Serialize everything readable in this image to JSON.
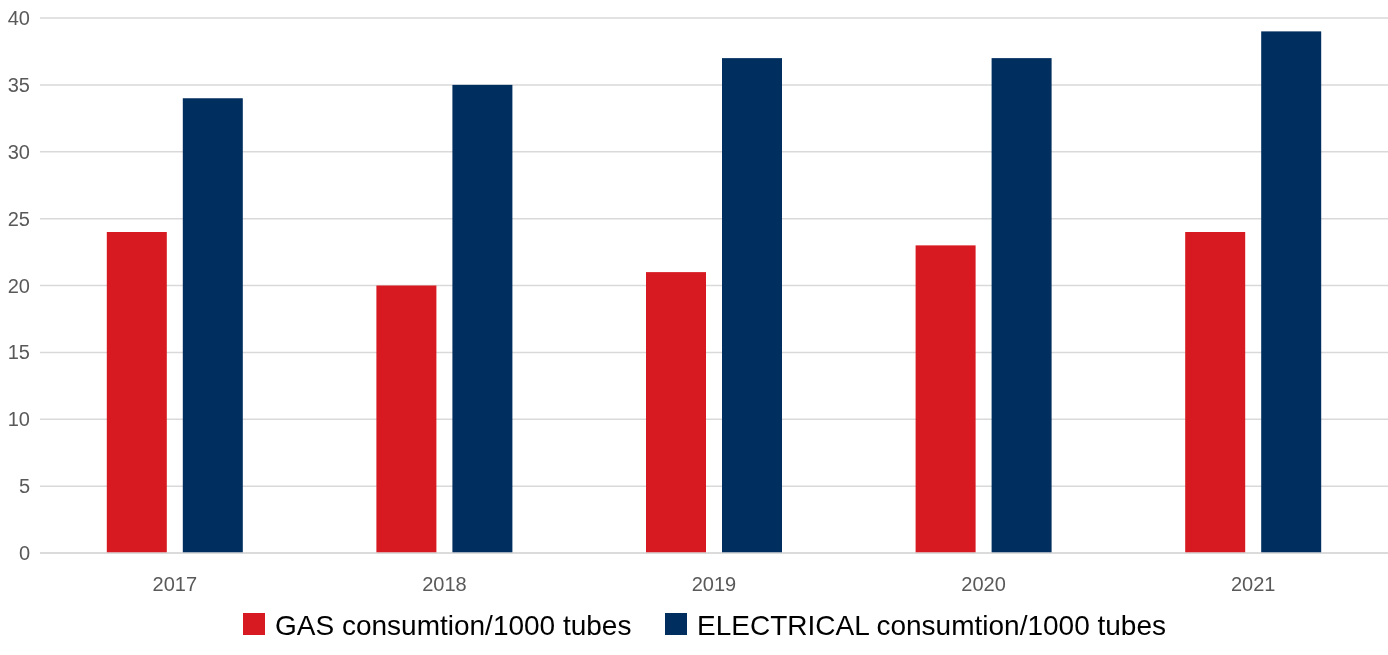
{
  "chart_data": {
    "type": "bar",
    "categories": [
      "2017",
      "2018",
      "2019",
      "2020",
      "2021"
    ],
    "series": [
      {
        "name": "GAS consumtion/1000 tubes",
        "color": "#d71a21",
        "values": [
          24,
          20,
          21,
          23,
          24
        ]
      },
      {
        "name": "ELECTRICAL consumtion/1000 tubes",
        "color": "#002f5f",
        "values": [
          34,
          35,
          37,
          37,
          39
        ]
      }
    ],
    "ylim": [
      0,
      40
    ],
    "yticks": [
      0,
      5,
      10,
      15,
      20,
      25,
      30,
      35,
      40
    ],
    "grid": "y",
    "legend": "bottom"
  }
}
